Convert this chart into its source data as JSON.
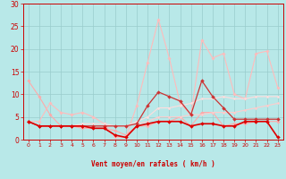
{
  "title": "",
  "xlabel": "Vent moyen/en rafales ( km/h )",
  "ylabel": "",
  "xlim": [
    -0.5,
    23.5
  ],
  "ylim": [
    0,
    30
  ],
  "yticks": [
    0,
    5,
    10,
    15,
    20,
    25,
    30
  ],
  "xticks": [
    0,
    1,
    2,
    3,
    4,
    5,
    6,
    7,
    8,
    9,
    10,
    11,
    12,
    13,
    14,
    15,
    16,
    17,
    18,
    19,
    20,
    21,
    22,
    23
  ],
  "bg_color": "#b8e8e8",
  "grid_color": "#99cccc",
  "series": [
    {
      "x": [
        0,
        1,
        2,
        3,
        4,
        5,
        6,
        7,
        8,
        9,
        10,
        11,
        12,
        13,
        14,
        15,
        16,
        17,
        18,
        19,
        20,
        21,
        22,
        23
      ],
      "y": [
        13,
        9.5,
        5.5,
        3,
        3,
        2.5,
        2.5,
        2.5,
        2,
        1,
        3,
        3,
        4,
        4,
        5,
        3,
        6,
        6,
        3,
        3.5,
        3.5,
        4,
        4,
        4
      ],
      "color": "#ffaaaa",
      "lw": 0.8,
      "marker": "D",
      "ms": 1.8
    },
    {
      "x": [
        0,
        1,
        2,
        3,
        4,
        5,
        6,
        7,
        8,
        9,
        10,
        11,
        12,
        13,
        14,
        15,
        16,
        17,
        18,
        19,
        20,
        21,
        22,
        23
      ],
      "y": [
        4,
        4,
        8,
        6,
        5.5,
        6,
        5,
        3.5,
        0.5,
        0.5,
        7.5,
        17,
        26.5,
        18,
        8,
        5.5,
        22,
        18,
        19,
        10,
        9,
        19,
        19.5,
        11.5
      ],
      "color": "#ffbbbb",
      "lw": 0.8,
      "marker": "D",
      "ms": 1.8
    },
    {
      "x": [
        0,
        1,
        2,
        3,
        4,
        5,
        6,
        7,
        8,
        9,
        10,
        11,
        12,
        13,
        14,
        15,
        16,
        17,
        18,
        19,
        20,
        21,
        22,
        23
      ],
      "y": [
        4,
        3,
        3,
        3,
        3,
        3,
        3,
        3,
        3,
        3,
        3.5,
        4,
        5,
        5,
        5,
        5.5,
        5.5,
        6,
        6,
        6,
        6.5,
        7,
        7.5,
        8
      ],
      "color": "#ffcccc",
      "lw": 0.8,
      "marker": "D",
      "ms": 1.5
    },
    {
      "x": [
        0,
        1,
        2,
        3,
        4,
        5,
        6,
        7,
        8,
        9,
        10,
        11,
        12,
        13,
        14,
        15,
        16,
        17,
        18,
        19,
        20,
        21,
        22,
        23
      ],
      "y": [
        4,
        3,
        3,
        3,
        3,
        3.5,
        3.5,
        3.5,
        3,
        3,
        4,
        5,
        7,
        7,
        7.5,
        8,
        9,
        9,
        9.5,
        9,
        9,
        9.5,
        9.5,
        9.5
      ],
      "color": "#ffdddd",
      "lw": 0.8,
      "marker": "D",
      "ms": 1.5
    },
    {
      "x": [
        0,
        1,
        2,
        3,
        4,
        5,
        6,
        7,
        8,
        9,
        10,
        11,
        12,
        13,
        14,
        15,
        16,
        17,
        18,
        19,
        20,
        21,
        22,
        23
      ],
      "y": [
        4,
        3,
        3,
        3,
        3,
        3,
        3,
        3,
        3,
        3,
        3.5,
        7.5,
        10.5,
        9.5,
        8.5,
        5.5,
        13,
        9.5,
        7,
        4.5,
        4.5,
        4.5,
        4.5,
        4.5
      ],
      "color": "#cc3333",
      "lw": 0.9,
      "marker": "D",
      "ms": 2.0
    },
    {
      "x": [
        0,
        1,
        2,
        3,
        4,
        5,
        6,
        7,
        8,
        9,
        10,
        11,
        12,
        13,
        14,
        15,
        16,
        17,
        18,
        19,
        20,
        21,
        22,
        23
      ],
      "y": [
        4,
        3,
        3,
        3,
        3,
        3,
        2.5,
        2.5,
        1,
        0.5,
        3,
        3.5,
        4,
        4,
        4,
        3,
        3.5,
        3.5,
        3,
        3,
        4,
        4,
        4,
        0.5
      ],
      "color": "#dd0000",
      "lw": 1.2,
      "marker": "D",
      "ms": 2.0
    }
  ],
  "wind_arrows": {
    "x": [
      0,
      1,
      2,
      3,
      4,
      5,
      6,
      7,
      8,
      9,
      10,
      11,
      12,
      13,
      14,
      15,
      16,
      17,
      18,
      19,
      20,
      21,
      22,
      23
    ],
    "symbols": [
      "↓",
      "↓",
      "↙",
      "↓",
      "↓",
      "↓",
      "↓",
      "↙",
      "↙",
      "↑",
      "↗",
      "↑",
      "↑",
      "←",
      "↗",
      "↙",
      "↓",
      "↙",
      "↗",
      "↗",
      "→",
      "→",
      "→",
      "→"
    ],
    "color": "#cc0000",
    "fontsize": 5
  }
}
